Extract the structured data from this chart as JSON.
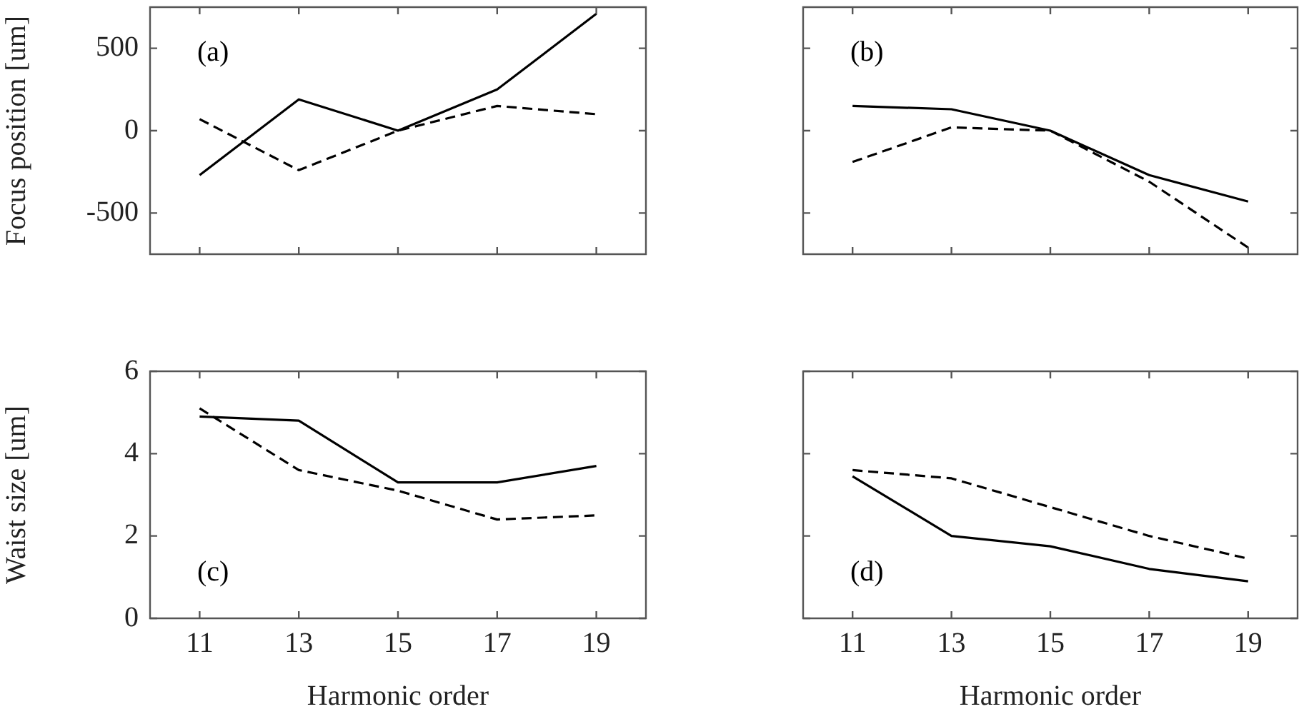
{
  "chart_data": [
    {
      "type": "line",
      "ylabel": "Focus position [um]",
      "annotations": [
        "(a)"
      ],
      "x": [
        11,
        13,
        15,
        17,
        19
      ],
      "xlim": [
        10,
        20
      ],
      "xticks": [
        11,
        13,
        15,
        17,
        19
      ],
      "ylim": [
        -750,
        750
      ],
      "yticks": [
        -500,
        0,
        500
      ],
      "tick_labels": "y",
      "marker": "none",
      "series": [
        {
          "color": "#000000",
          "line_style": "solid",
          "values": [
            -270,
            190,
            0,
            250,
            710
          ]
        },
        {
          "color": "#000000",
          "line_style": "dashed",
          "values": [
            70,
            -240,
            0,
            150,
            100
          ]
        }
      ]
    },
    {
      "type": "line",
      "annotations": [
        "(b)"
      ],
      "x": [
        11,
        13,
        15,
        17,
        19
      ],
      "xlim": [
        10,
        20
      ],
      "xticks": [
        11,
        13,
        15,
        17,
        19
      ],
      "ylim": [
        -750,
        750
      ],
      "yticks": [
        -500,
        0,
        500
      ],
      "tick_labels": false,
      "marker": "none",
      "series": [
        {
          "color": "#000000",
          "line_style": "solid",
          "values": [
            150,
            130,
            0,
            -270,
            -430
          ]
        },
        {
          "color": "#000000",
          "line_style": "dashed",
          "values": [
            -190,
            20,
            0,
            -310,
            -710
          ]
        }
      ]
    },
    {
      "type": "line",
      "xlabel": "Harmonic order",
      "ylabel": "Waist size [um]",
      "annotations": [
        "(c)"
      ],
      "x": [
        11,
        13,
        15,
        17,
        19
      ],
      "xlim": [
        10,
        20
      ],
      "xticks": [
        11,
        13,
        15,
        17,
        19
      ],
      "ylim": [
        0,
        6
      ],
      "yticks": [
        0,
        2,
        4,
        6
      ],
      "marker": "none",
      "series": [
        {
          "color": "#000000",
          "line_style": "solid",
          "values": [
            4.9,
            4.8,
            3.3,
            3.3,
            3.7
          ]
        },
        {
          "color": "#000000",
          "line_style": "dashed",
          "values": [
            5.1,
            3.6,
            3.1,
            2.4,
            2.5
          ]
        }
      ]
    },
    {
      "type": "line",
      "xlabel": "Harmonic order",
      "annotations": [
        "(d)"
      ],
      "x": [
        11,
        13,
        15,
        17,
        19
      ],
      "xlim": [
        10,
        20
      ],
      "xticks": [
        11,
        13,
        15,
        17,
        19
      ],
      "ylim": [
        0,
        6
      ],
      "yticks": [
        0,
        2,
        4,
        6
      ],
      "tick_labels": "x",
      "marker": "none",
      "series": [
        {
          "color": "#000000",
          "line_style": "solid",
          "values": [
            3.45,
            2.0,
            1.75,
            1.2,
            0.9
          ]
        },
        {
          "color": "#000000",
          "line_style": "dashed",
          "values": [
            3.6,
            3.4,
            2.7,
            2.0,
            1.45
          ]
        }
      ]
    }
  ]
}
